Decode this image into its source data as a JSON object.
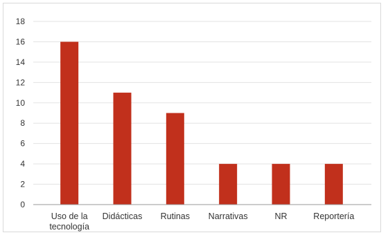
{
  "chart_data": {
    "type": "bar",
    "title": "",
    "xlabel": "",
    "ylabel": "",
    "categories": [
      [
        "Uso de la",
        "tecnología"
      ],
      [
        "Didácticas"
      ],
      [
        "Rutinas"
      ],
      [
        "Narrativas"
      ],
      [
        "NR"
      ],
      [
        "Reportería"
      ]
    ],
    "values": [
      16,
      11,
      9,
      4,
      4,
      4
    ],
    "ylim": [
      0,
      18
    ],
    "yticks": [
      0,
      2,
      4,
      6,
      8,
      10,
      12,
      14,
      16,
      18
    ],
    "grid": true,
    "legend": "none",
    "bar_color": "#c1301c"
  }
}
